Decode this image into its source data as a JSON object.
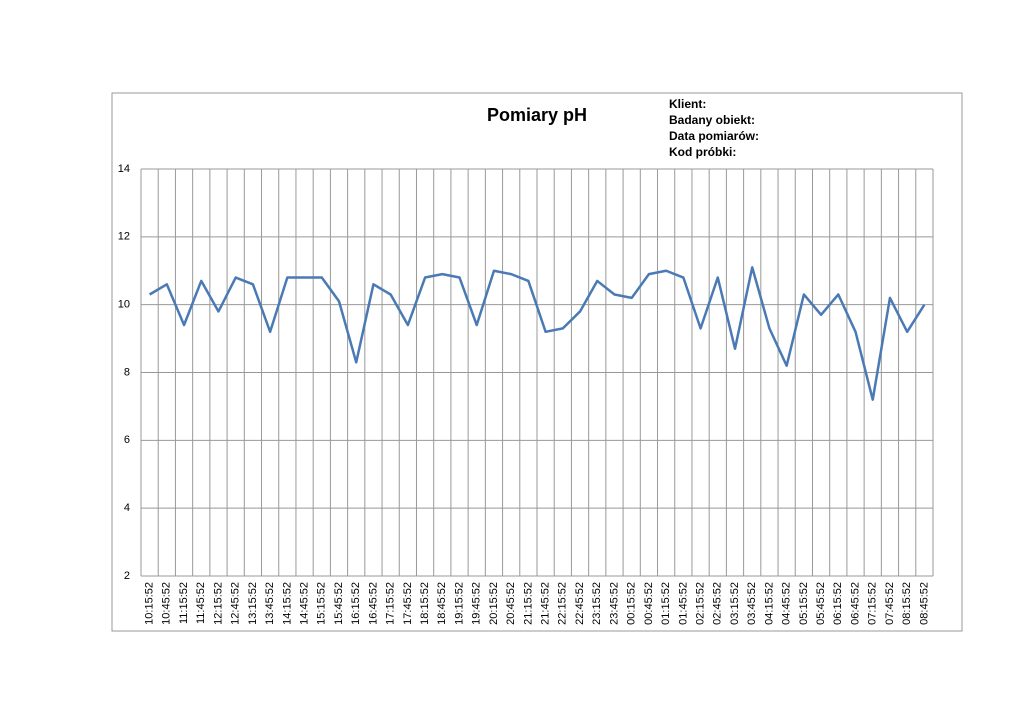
{
  "chart_data": {
    "type": "line",
    "title": "Pomiary pH",
    "info": [
      "Klient:",
      "Badany obiekt:",
      "Data pomiarów:",
      "Kod próbki:"
    ],
    "categories": [
      "10:15:52",
      "10:45:52",
      "11:15:52",
      "11:45:52",
      "12:15:52",
      "12:45:52",
      "13:15:52",
      "13:45:52",
      "14:15:52",
      "14:45:52",
      "15:15:52",
      "15:45:52",
      "16:15:52",
      "16:45:52",
      "17:15:52",
      "17:45:52",
      "18:15:52",
      "18:45:52",
      "19:15:52",
      "19:45:52",
      "20:15:52",
      "20:45:52",
      "21:15:52",
      "21:45:52",
      "22:15:52",
      "22:45:52",
      "23:15:52",
      "23:45:52",
      "00:15:52",
      "00:45:52",
      "01:15:52",
      "01:45:52",
      "02:15:52",
      "02:45:52",
      "03:15:52",
      "03:45:52",
      "04:15:52",
      "04:45:52",
      "05:15:52",
      "05:45:52",
      "06:15:52",
      "06:45:52",
      "07:15:52",
      "07:45:52",
      "08:15:52",
      "08:45:52"
    ],
    "values": [
      10.3,
      10.6,
      9.4,
      10.7,
      9.8,
      10.8,
      10.6,
      9.2,
      10.8,
      10.8,
      10.8,
      10.1,
      8.3,
      10.6,
      10.3,
      9.4,
      10.8,
      10.9,
      10.8,
      9.4,
      11.0,
      10.9,
      10.7,
      9.2,
      9.3,
      9.8,
      10.7,
      10.3,
      10.2,
      10.9,
      11.0,
      10.8,
      9.3,
      10.8,
      8.7,
      11.1,
      9.3,
      8.2,
      10.3,
      9.7,
      10.3,
      9.2,
      7.2,
      10.2,
      9.2,
      10.0
    ],
    "color": "#4a7ab5",
    "ylim": [
      2,
      14
    ],
    "yticks": [
      2,
      4,
      6,
      8,
      10,
      12,
      14
    ],
    "grid": true
  }
}
